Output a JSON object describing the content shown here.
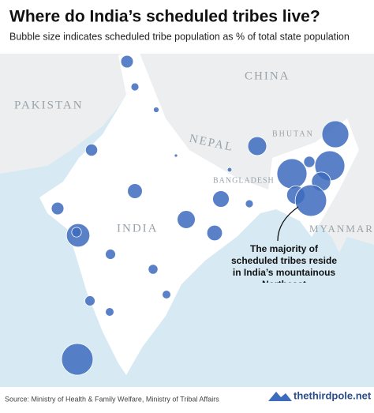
{
  "header": {
    "title": "Where do India’s scheduled tribes live?",
    "subtitle": "Bubble size indicates scheduled tribe population as % of total state population"
  },
  "map_labels": {
    "pakistan": "PAKISTAN",
    "china": "CHINA",
    "nepal": "NEPAL",
    "bhutan": "BHUTAN",
    "bangladesh": "BANGLADESH",
    "india": "INDIA",
    "myanmar": "MYANMAR"
  },
  "annotation": "The majority of scheduled tribes reside in India’s mountainous Northeast",
  "bubble_color": "#3d6bbd",
  "bubbles": {
    "values": [
      15,
      6,
      3,
      14,
      1,
      2,
      21,
      15,
      31,
      26,
      6,
      23,
      52,
      9,
      10,
      9,
      7,
      10,
      7,
      95,
      34,
      69,
      86,
      86,
      12,
      35,
      32,
      94
    ]
  },
  "footer": {
    "source": "Source: Ministry of Health & Family Welfare, Ministry of Tribal Affairs",
    "logo": "thethirdpole.net"
  }
}
